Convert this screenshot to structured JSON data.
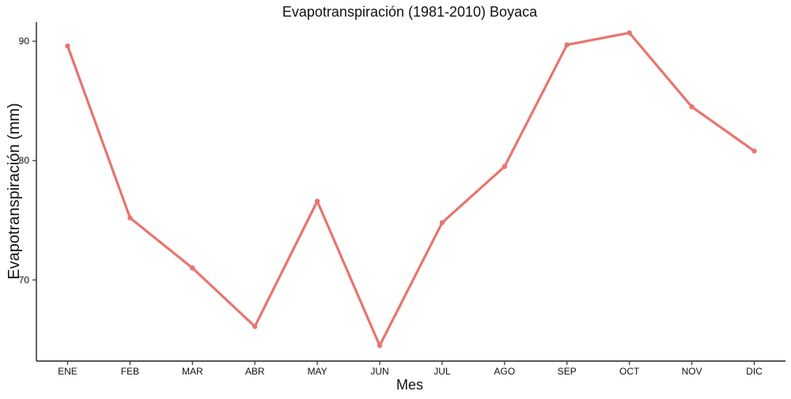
{
  "chart_data": {
    "type": "line",
    "title": "Evapotranspiración (1981-2010)  Boyaca",
    "xlabel": "Mes",
    "ylabel": "Evapotranspiración (mm)",
    "categories": [
      "ENE",
      "FEB",
      "MAR",
      "ABR",
      "MAY",
      "JUN",
      "JUL",
      "AGO",
      "SEP",
      "OCT",
      "NOV",
      "DIC"
    ],
    "values": [
      89.6,
      75.2,
      71.0,
      66.1,
      76.6,
      64.5,
      74.8,
      79.5,
      89.7,
      90.7,
      84.5,
      80.8
    ],
    "ylim": [
      63.2,
      91.6
    ],
    "yticks": [
      70,
      80,
      90
    ],
    "ytick_labels": [
      "70",
      "80",
      "90"
    ],
    "grid": false,
    "legend": "none",
    "line_color": "#e8756e"
  }
}
